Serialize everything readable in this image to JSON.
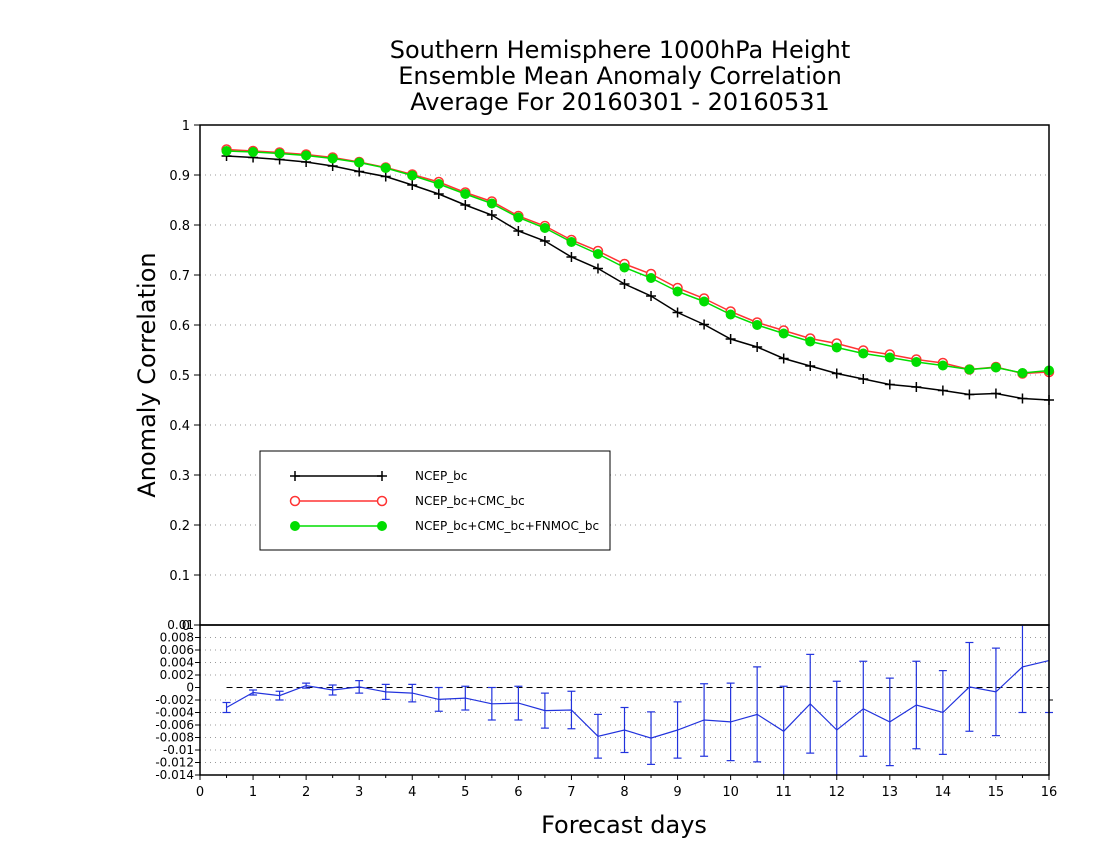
{
  "chart_data": [
    {
      "type": "line",
      "title_lines": [
        "Southern Hemisphere 1000hPa Height",
        "Ensemble Mean Anomaly Correlation",
        "Average For 20160301 - 20160531"
      ],
      "ylabel": "Anomaly Correlation",
      "xlim": [
        0,
        16
      ],
      "ylim": [
        0,
        1
      ],
      "yticks": [
        "0",
        "0.1",
        "0.2",
        "0.3",
        "0.4",
        "0.5",
        "0.6",
        "0.7",
        "0.8",
        "0.9",
        "1"
      ],
      "grid": true,
      "legend_position": "left",
      "x": [
        0.5,
        1,
        1.5,
        2,
        2.5,
        3,
        3.5,
        4,
        4.5,
        5,
        5.5,
        6,
        6.5,
        7,
        7.5,
        8,
        8.5,
        9,
        9.5,
        10,
        10.5,
        11,
        11.5,
        12,
        12.5,
        13,
        13.5,
        14,
        14.5,
        15,
        15.5,
        16
      ],
      "series": [
        {
          "name": "NCEP_bc",
          "color": "#000000",
          "marker": "plus",
          "values": [
            0.938,
            0.935,
            0.931,
            0.926,
            0.918,
            0.907,
            0.897,
            0.88,
            0.862,
            0.84,
            0.82,
            0.788,
            0.768,
            0.736,
            0.713,
            0.682,
            0.658,
            0.625,
            0.601,
            0.572,
            0.556,
            0.533,
            0.518,
            0.503,
            0.492,
            0.481,
            0.476,
            0.469,
            0.461,
            0.463,
            0.453,
            0.45
          ]
        },
        {
          "name": "NCEP_bc+CMC_bc",
          "color": "#ff3333",
          "marker": "open-circle",
          "values": [
            0.951,
            0.948,
            0.945,
            0.941,
            0.935,
            0.926,
            0.915,
            0.901,
            0.886,
            0.865,
            0.847,
            0.818,
            0.798,
            0.77,
            0.748,
            0.722,
            0.702,
            0.674,
            0.653,
            0.627,
            0.605,
            0.589,
            0.573,
            0.563,
            0.549,
            0.541,
            0.531,
            0.524,
            0.511,
            0.516,
            0.503,
            0.506
          ]
        },
        {
          "name": "NCEP_bc+CMC_bc+FNMOC_bc",
          "color": "#00dd00",
          "marker": "filled-circle",
          "values": [
            0.948,
            0.946,
            0.943,
            0.939,
            0.933,
            0.925,
            0.914,
            0.899,
            0.882,
            0.862,
            0.843,
            0.815,
            0.794,
            0.766,
            0.742,
            0.715,
            0.694,
            0.667,
            0.647,
            0.621,
            0.6,
            0.583,
            0.567,
            0.555,
            0.543,
            0.535,
            0.526,
            0.519,
            0.511,
            0.515,
            0.504,
            0.509
          ]
        }
      ]
    },
    {
      "type": "line",
      "xlabel": "Forecast days",
      "xlim": [
        0,
        16
      ],
      "xticks": [
        "0",
        "1",
        "2",
        "3",
        "4",
        "5",
        "6",
        "7",
        "8",
        "9",
        "10",
        "11",
        "12",
        "13",
        "14",
        "15",
        "16"
      ],
      "ylim": [
        -0.014,
        0.01
      ],
      "yticks": [
        "0.01",
        "0.008",
        "0.006",
        "0.004",
        "0.002",
        "0",
        "-0.002",
        "-0.004",
        "-0.006",
        "-0.008",
        "-0.01",
        "-0.012",
        "-0.014"
      ],
      "grid": true,
      "color": "#2233dd",
      "x": [
        0.5,
        1,
        1.5,
        2,
        2.5,
        3,
        3.5,
        4,
        4.5,
        5,
        5.5,
        6,
        6.5,
        7,
        7.5,
        8,
        8.5,
        9,
        9.5,
        10,
        10.5,
        11,
        11.5,
        12,
        12.5,
        13,
        13.5,
        14,
        14.5,
        15,
        15.5,
        16
      ],
      "values": [
        -0.0032,
        -0.0008,
        -0.0013,
        0.0003,
        -0.0004,
        0.0001,
        -0.0007,
        -0.0009,
        -0.0019,
        -0.0017,
        -0.0026,
        -0.0025,
        -0.0037,
        -0.0036,
        -0.0078,
        -0.0068,
        -0.0081,
        -0.0068,
        -0.0052,
        -0.0055,
        -0.0043,
        -0.007,
        -0.0026,
        -0.0068,
        -0.0034,
        -0.0055,
        -0.0028,
        -0.004,
        0.0001,
        -0.0007,
        0.0033,
        0.0043
      ],
      "error_low": [
        -0.004,
        -0.0012,
        -0.002,
        -0.0001,
        -0.0012,
        -0.0009,
        -0.0019,
        -0.0023,
        -0.0038,
        -0.0036,
        -0.0052,
        -0.0052,
        -0.0065,
        -0.0066,
        -0.0113,
        -0.0104,
        -0.0123,
        -0.0113,
        -0.011,
        -0.0117,
        -0.0119,
        -0.0142,
        -0.0105,
        -0.0146,
        -0.011,
        -0.0125,
        -0.0098,
        -0.0107,
        -0.007,
        -0.0077,
        -0.004,
        -0.004
      ],
      "error_high": [
        -0.0024,
        -0.0004,
        -0.0006,
        0.0007,
        0.0004,
        0.0011,
        0.0005,
        0.0005,
        0.0,
        0.0002,
        0.0,
        0.0002,
        -0.0009,
        -0.0006,
        -0.0043,
        -0.0032,
        -0.0039,
        -0.0023,
        0.0006,
        0.0007,
        0.0033,
        0.0002,
        0.0053,
        0.001,
        0.0042,
        0.0015,
        0.0042,
        0.0027,
        0.0072,
        0.0063,
        0.0106,
        0.0106
      ]
    }
  ]
}
